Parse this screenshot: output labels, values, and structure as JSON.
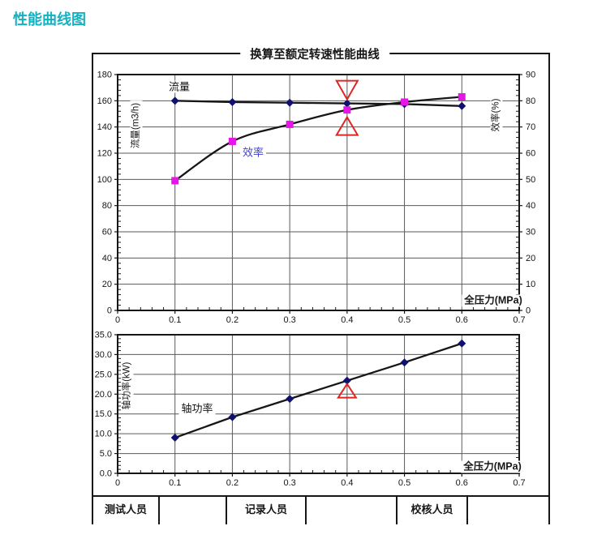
{
  "page": {
    "heading": "性能曲线图"
  },
  "figure_title": "换算至额定转速性能曲线",
  "footer_cells": [
    "测试人员",
    "",
    "记录人员",
    "",
    "校核人员",
    ""
  ],
  "colors": {
    "heading": "#12b2c0",
    "efficiency_label": "#4040cc",
    "flow_marker": "#10106e",
    "efficiency_marker": "#e616e6",
    "power_marker": "#10106e",
    "line": "#161616",
    "grid": "#5a5a5a",
    "annotation": "#dd2626"
  },
  "chart_data": [
    {
      "type": "line",
      "title": "换算至额定转速性能曲线",
      "xlabel": "全压力(MPa)",
      "ylabel_left": "流量(m3/h)",
      "ylabel_right": "效率(%)",
      "xlim": [
        0,
        0.7
      ],
      "xtick_labels": [
        "0",
        "0.1",
        "0.2",
        "0.3",
        "0.4",
        "0.5",
        "0.6",
        "0.7"
      ],
      "ylim_left": [
        0,
        180
      ],
      "ytick_labels_left": [
        "0",
        "20",
        "40",
        "60",
        "80",
        "100",
        "120",
        "140",
        "160",
        "180"
      ],
      "ylim_right": [
        0,
        90
      ],
      "ytick_labels_right": [
        "0",
        "10",
        "20",
        "30",
        "40",
        "50",
        "60",
        "70",
        "80",
        "90"
      ],
      "grid": true,
      "x": [
        0.1,
        0.2,
        0.3,
        0.4,
        0.5,
        0.6
      ],
      "series": [
        {
          "name": "流量",
          "axis": "left",
          "marker": "diamond",
          "curve": false,
          "values": [
            160,
            159,
            158.5,
            158,
            157.5,
            156
          ]
        },
        {
          "name": "效率",
          "axis": "right",
          "marker": "square",
          "curve": true,
          "values": [
            49.5,
            64.5,
            71,
            76.5,
            79.5,
            81.5
          ]
        }
      ],
      "annotation_x": 0.4,
      "annotation_note": "red open triangles marking rated point at 0.4 MPa"
    },
    {
      "type": "line",
      "title": "",
      "xlabel": "全压力(MPa)",
      "ylabel_left": "轴功率(kW)",
      "xlim": [
        0,
        0.7
      ],
      "xtick_labels": [
        "0",
        "0.1",
        "0.2",
        "0.3",
        "0.4",
        "0.5",
        "0.6",
        "0.7"
      ],
      "ylim_left": [
        0,
        35
      ],
      "ytick_labels_left": [
        "0.0",
        "5.0",
        "10.0",
        "15.0",
        "20.0",
        "25.0",
        "30.0",
        "35.0"
      ],
      "grid": true,
      "x": [
        0.1,
        0.2,
        0.3,
        0.4,
        0.5,
        0.6
      ],
      "series": [
        {
          "name": "轴功率",
          "axis": "left",
          "marker": "diamond",
          "curve": false,
          "values": [
            9.0,
            14.2,
            18.8,
            23.4,
            28.0,
            32.8
          ]
        }
      ],
      "annotation_x": 0.4,
      "annotation_note": "red open triangle marking rated point at 0.4 MPa"
    }
  ]
}
